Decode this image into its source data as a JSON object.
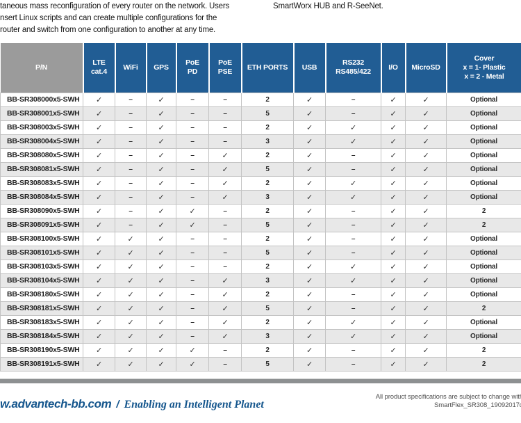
{
  "intro": {
    "left_lines": [
      "taneous mass reconfiguration of every router on the network. Users",
      "nsert Linux scripts and can create multiple configurations for the",
      "router and switch from one configuration to another at any time."
    ],
    "right_line": "SmartWorx HUB and R-SeeNet."
  },
  "table": {
    "headers": [
      "P/N",
      "LTE\ncat.4",
      "WiFi",
      "GPS",
      "PoE\nPD",
      "PoE\nPSE",
      "ETH PORTS",
      "USB",
      "RS232\nRS485/422",
      "I/O",
      "MicroSD",
      "Cover\nx = 1- Plastic\nx = 2 - Metal"
    ],
    "rows": [
      [
        "BB-SR308000x5-SWH",
        "✓",
        "–",
        "✓",
        "–",
        "–",
        "2",
        "✓",
        "–",
        "✓",
        "✓",
        "Optional"
      ],
      [
        "BB-SR308001x5-SWH",
        "✓",
        "–",
        "✓",
        "–",
        "–",
        "5",
        "✓",
        "–",
        "✓",
        "✓",
        "Optional"
      ],
      [
        "BB-SR308003x5-SWH",
        "✓",
        "–",
        "✓",
        "–",
        "–",
        "2",
        "✓",
        "✓",
        "✓",
        "✓",
        "Optional"
      ],
      [
        "BB-SR308004x5-SWH",
        "✓",
        "–",
        "✓",
        "–",
        "–",
        "3",
        "✓",
        "✓",
        "✓",
        "✓",
        "Optional"
      ],
      [
        "BB-SR308080x5-SWH",
        "✓",
        "–",
        "✓",
        "–",
        "✓",
        "2",
        "✓",
        "–",
        "✓",
        "✓",
        "Optional"
      ],
      [
        "BB-SR308081x5-SWH",
        "✓",
        "–",
        "✓",
        "–",
        "✓",
        "5",
        "✓",
        "–",
        "✓",
        "✓",
        "Optional"
      ],
      [
        "BB-SR308083x5-SWH",
        "✓",
        "–",
        "✓",
        "–",
        "✓",
        "2",
        "✓",
        "✓",
        "✓",
        "✓",
        "Optional"
      ],
      [
        "BB-SR308084x5-SWH",
        "✓",
        "–",
        "✓",
        "–",
        "✓",
        "3",
        "✓",
        "✓",
        "✓",
        "✓",
        "Optional"
      ],
      [
        "BB-SR308090x5-SWH",
        "✓",
        "–",
        "✓",
        "✓",
        "–",
        "2",
        "✓",
        "–",
        "✓",
        "✓",
        "2"
      ],
      [
        "BB-SR308091x5-SWH",
        "✓",
        "–",
        "✓",
        "✓",
        "–",
        "5",
        "✓",
        "–",
        "✓",
        "✓",
        "2"
      ],
      [
        "BB-SR308100x5-SWH",
        "✓",
        "✓",
        "✓",
        "–",
        "–",
        "2",
        "✓",
        "–",
        "✓",
        "✓",
        "Optional"
      ],
      [
        "BB-SR308101x5-SWH",
        "✓",
        "✓",
        "✓",
        "–",
        "–",
        "5",
        "✓",
        "–",
        "✓",
        "✓",
        "Optional"
      ],
      [
        "BB-SR308103x5-SWH",
        "✓",
        "✓",
        "✓",
        "–",
        "–",
        "2",
        "✓",
        "✓",
        "✓",
        "✓",
        "Optional"
      ],
      [
        "BB-SR308104x5-SWH",
        "✓",
        "✓",
        "✓",
        "–",
        "✓",
        "3",
        "✓",
        "✓",
        "✓",
        "✓",
        "Optional"
      ],
      [
        "BB-SR308180x5-SWH",
        "✓",
        "✓",
        "✓",
        "–",
        "✓",
        "2",
        "✓",
        "–",
        "✓",
        "✓",
        "Optional"
      ],
      [
        "BB-SR308181x5-SWH",
        "✓",
        "✓",
        "✓",
        "–",
        "✓",
        "5",
        "✓",
        "–",
        "✓",
        "✓",
        "2"
      ],
      [
        "BB-SR308183x5-SWH",
        "✓",
        "✓",
        "✓",
        "–",
        "✓",
        "2",
        "✓",
        "✓",
        "✓",
        "✓",
        "Optional"
      ],
      [
        "BB-SR308184x5-SWH",
        "✓",
        "✓",
        "✓",
        "–",
        "✓",
        "3",
        "✓",
        "✓",
        "✓",
        "✓",
        "Optional"
      ],
      [
        "BB-SR308190x5-SWH",
        "✓",
        "✓",
        "✓",
        "✓",
        "–",
        "2",
        "✓",
        "–",
        "✓",
        "✓",
        "2"
      ],
      [
        "BB-SR308191x5-SWH",
        "✓",
        "✓",
        "✓",
        "✓",
        "–",
        "5",
        "✓",
        "–",
        "✓",
        "✓",
        "2"
      ]
    ]
  },
  "footer": {
    "website": "w.advantech-bb.com",
    "separator": "/",
    "tagline": "Enabling an Intelligent Planet",
    "note_line1": "All product specifications are subject to change with",
    "note_line2": "SmartFlex_SR308_19092017d"
  },
  "colors": {
    "header_blue": "#215d94",
    "header_gray": "#9b9b9b",
    "row_alt": "#e8e8e8",
    "footer_blue": "#15568d"
  }
}
